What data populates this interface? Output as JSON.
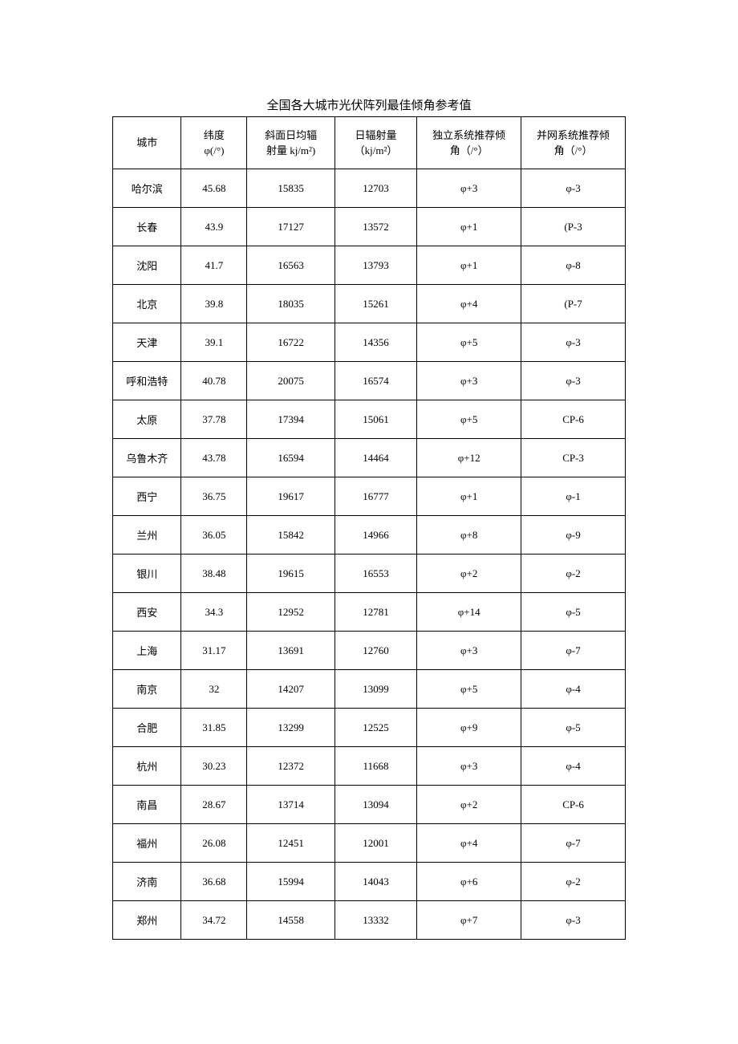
{
  "title": "全国各大城市光伏阵列最佳倾角参考值",
  "table": {
    "columns": [
      {
        "key": "city",
        "header_line1": "城市",
        "header_line2": "",
        "class": "col-city"
      },
      {
        "key": "latitude",
        "header_line1": "纬度",
        "header_line2": "φ(/°)",
        "class": "col-lat"
      },
      {
        "key": "tilt_radiation",
        "header_line1": "斜面日均辐",
        "header_line2": "射量 kj/m²)",
        "class": "col-tilt"
      },
      {
        "key": "day_radiation",
        "header_line1": "日辐射量",
        "header_line2": "（kj/m²）",
        "class": "col-rad"
      },
      {
        "key": "independent",
        "header_line1": "独立系统推荐倾",
        "header_line2": "角（/°）",
        "class": "col-indep"
      },
      {
        "key": "grid",
        "header_line1": "并网系统推荐倾",
        "header_line2": "角（/°）",
        "class": "col-grid"
      }
    ],
    "rows": [
      {
        "city": "哈尔滨",
        "latitude": "45.68",
        "tilt_radiation": "15835",
        "day_radiation": "12703",
        "independent": "φ+3",
        "grid": "φ-3"
      },
      {
        "city": "长春",
        "latitude": "43.9",
        "tilt_radiation": "17127",
        "day_radiation": "13572",
        "independent": "φ+1",
        "grid": "(P-3"
      },
      {
        "city": "沈阳",
        "latitude": "41.7",
        "tilt_radiation": "16563",
        "day_radiation": "13793",
        "independent": "φ+1",
        "grid": "φ-8"
      },
      {
        "city": "北京",
        "latitude": "39.8",
        "tilt_radiation": "18035",
        "day_radiation": "15261",
        "independent": "φ+4",
        "grid": "(P-7"
      },
      {
        "city": "天津",
        "latitude": "39.1",
        "tilt_radiation": "16722",
        "day_radiation": "14356",
        "independent": "φ+5",
        "grid": "φ-3"
      },
      {
        "city": "呼和浩特",
        "latitude": "40.78",
        "tilt_radiation": "20075",
        "day_radiation": "16574",
        "independent": "φ+3",
        "grid": "φ-3"
      },
      {
        "city": "太原",
        "latitude": "37.78",
        "tilt_radiation": "17394",
        "day_radiation": "15061",
        "independent": "φ+5",
        "grid": "CP-6"
      },
      {
        "city": "乌鲁木齐",
        "latitude": "43.78",
        "tilt_radiation": "16594",
        "day_radiation": "14464",
        "independent": "φ+12",
        "grid": "CP-3"
      },
      {
        "city": "西宁",
        "latitude": "36.75",
        "tilt_radiation": "19617",
        "day_radiation": "16777",
        "independent": "φ+1",
        "grid": "φ-1"
      },
      {
        "city": "兰州",
        "latitude": "36.05",
        "tilt_radiation": "15842",
        "day_radiation": "14966",
        "independent": "φ+8",
        "grid": "φ-9"
      },
      {
        "city": "银川",
        "latitude": "38.48",
        "tilt_radiation": "19615",
        "day_radiation": "16553",
        "independent": "φ+2",
        "grid": "φ-2"
      },
      {
        "city": "西安",
        "latitude": "34.3",
        "tilt_radiation": "12952",
        "day_radiation": "12781",
        "independent": "φ+14",
        "grid": "φ-5"
      },
      {
        "city": "上海",
        "latitude": "31.17",
        "tilt_radiation": "13691",
        "day_radiation": "12760",
        "independent": "φ+3",
        "grid": "φ-7"
      },
      {
        "city": "南京",
        "latitude": "32",
        "tilt_radiation": "14207",
        "day_radiation": "13099",
        "independent": "φ+5",
        "grid": "φ-4"
      },
      {
        "city": "合肥",
        "latitude": "31.85",
        "tilt_radiation": "13299",
        "day_radiation": "12525",
        "independent": "φ+9",
        "grid": "φ-5"
      },
      {
        "city": "杭州",
        "latitude": "30.23",
        "tilt_radiation": "12372",
        "day_radiation": "11668",
        "independent": "φ+3",
        "grid": "φ-4"
      },
      {
        "city": "南昌",
        "latitude": "28.67",
        "tilt_radiation": "13714",
        "day_radiation": "13094",
        "independent": "φ+2",
        "grid": "CP-6"
      },
      {
        "city": "福州",
        "latitude": "26.08",
        "tilt_radiation": "12451",
        "day_radiation": "12001",
        "independent": "φ+4",
        "grid": "φ-7"
      },
      {
        "city": "济南",
        "latitude": "36.68",
        "tilt_radiation": "15994",
        "day_radiation": "14043",
        "independent": "φ+6",
        "grid": "φ-2"
      },
      {
        "city": "郑州",
        "latitude": "34.72",
        "tilt_radiation": "14558",
        "day_radiation": "13332",
        "independent": "φ+7",
        "grid": "φ-3"
      }
    ]
  },
  "styling": {
    "background_color": "#ffffff",
    "border_color": "#000000",
    "text_color": "#000000",
    "header_fontsize": 13,
    "cell_fontsize": 13,
    "title_fontsize": 15,
    "header_row_height": 64,
    "body_row_height": 47,
    "font_family": "SimSun"
  }
}
